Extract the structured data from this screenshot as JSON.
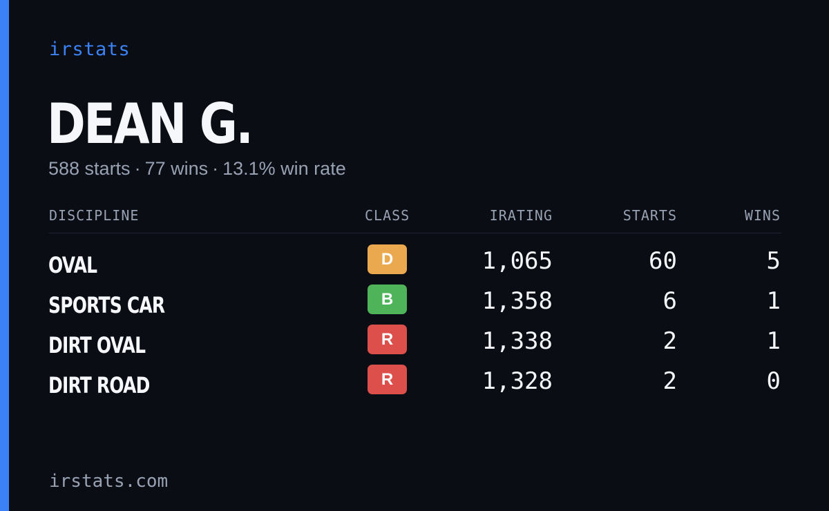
{
  "brand": "irstats",
  "driver": {
    "name": "DEAN G.",
    "starts": "588 starts",
    "wins": "77 wins",
    "win_rate": "13.1% win rate",
    "separator": "·"
  },
  "table": {
    "headers": {
      "discipline": "DISCIPLINE",
      "class": "CLASS",
      "irating": "IRATING",
      "starts": "STARTS",
      "wins": "WINS"
    },
    "rows": [
      {
        "discipline": "OVAL",
        "class": "D",
        "class_color": "#eaa94f",
        "irating": "1,065",
        "starts": "60",
        "wins": "5"
      },
      {
        "discipline": "SPORTS CAR",
        "class": "B",
        "class_color": "#4fb35a",
        "irating": "1,358",
        "starts": "6",
        "wins": "1"
      },
      {
        "discipline": "DIRT OVAL",
        "class": "R",
        "class_color": "#dc4f4a",
        "irating": "1,338",
        "starts": "2",
        "wins": "1"
      },
      {
        "discipline": "DIRT ROAD",
        "class": "R",
        "class_color": "#dc4f4a",
        "irating": "1,328",
        "starts": "2",
        "wins": "0"
      }
    ]
  },
  "footer": "irstats.com",
  "colors": {
    "accent": "#3b82f6",
    "background": "#0a0d14",
    "muted_text": "#98a2b3"
  }
}
